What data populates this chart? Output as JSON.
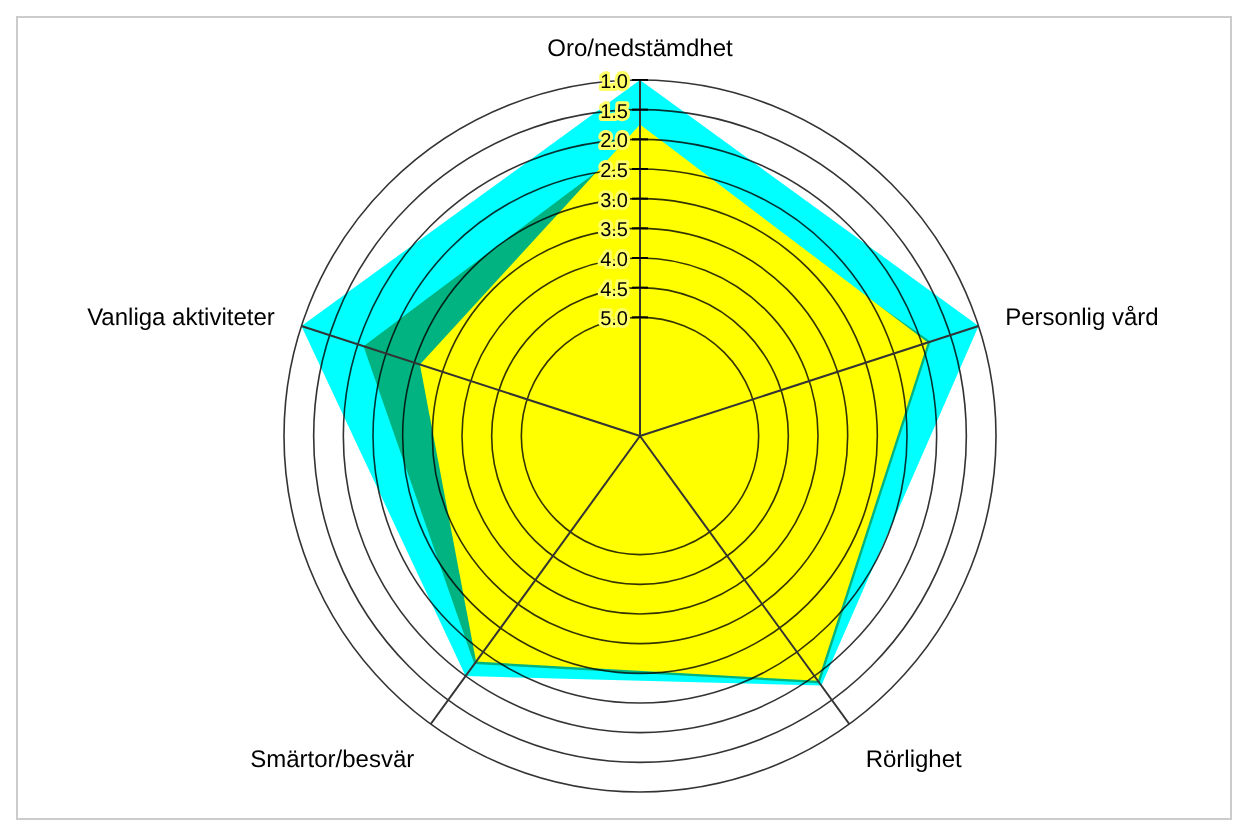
{
  "chart_data": {
    "type": "radar",
    "categories": [
      "Oro/nedstämdhet",
      "Personlig vård",
      "Rörlighet",
      "Smärtor/besvär",
      "Vanliga aktiviteter"
    ],
    "series": [
      {
        "color": "#00ffff",
        "values": [
          1.0,
          1.0,
          1.8,
          2.0,
          1.0
        ]
      },
      {
        "color": "#00b380",
        "values": [
          2.0,
          1.85,
          1.85,
          2.25,
          2.1
        ]
      },
      {
        "color": "#ffff00",
        "values": [
          1.75,
          1.9,
          1.9,
          2.3,
          3.1
        ]
      }
    ],
    "ylim": [
      7,
      1
    ],
    "yticks": [
      {
        "value": 1,
        "label": "1.0"
      },
      1.5,
      {
        "value": 2,
        "label": "2.0"
      },
      2.5,
      {
        "value": 3,
        "label": "3.0"
      },
      3.5,
      {
        "value": 4,
        "label": "4.0"
      },
      4.5,
      {
        "value": 5,
        "label": "5.0"
      }
    ],
    "grid": true
  }
}
